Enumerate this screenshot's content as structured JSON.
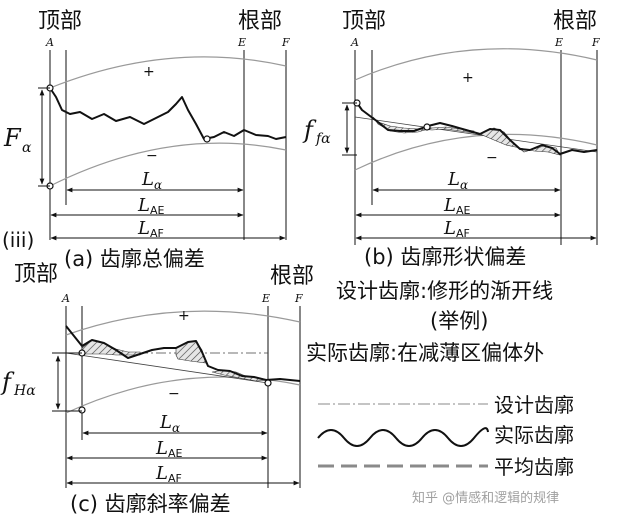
{
  "labels": {
    "tip": "顶部",
    "root": "根部",
    "A": "A",
    "E": "E",
    "F": "F",
    "plus": "+",
    "minus": "−",
    "L_alpha": "L",
    "L_alpha_sub": "α",
    "L_AE": "L",
    "L_AE_sub": "AE",
    "L_AF": "L",
    "L_AF_sub": "AF",
    "iii": "(iii)"
  },
  "panel_a": {
    "caption": "(a)  齿廓总偏差",
    "symbol": "F",
    "symbol_sub": "α"
  },
  "panel_b": {
    "caption": "(b)  齿廓形状偏差",
    "symbol": "f",
    "symbol_sub": "fα"
  },
  "panel_c": {
    "caption": "(c)  齿廓斜率偏差",
    "symbol": "f",
    "symbol_sub": "Hα"
  },
  "notes": {
    "line1": "设计齿廓:修形的渐开线",
    "line2": "(举例)",
    "line3": "实际齿廓:在减薄区偏体外"
  },
  "legend": {
    "design": "设计齿廓",
    "actual": "实际齿廓",
    "mean": "平均齿廓"
  },
  "watermark": "知乎 @情感和逻辑的规律"
}
